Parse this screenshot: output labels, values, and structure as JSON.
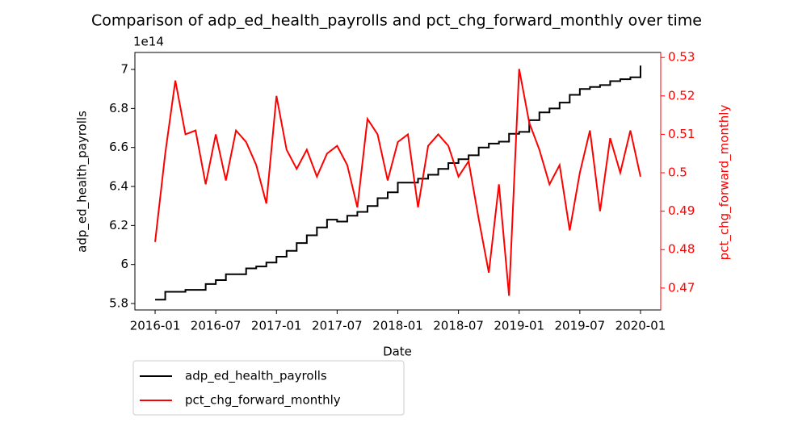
{
  "chart_data": {
    "type": "line",
    "title": "Comparison of adp_ed_health_payrolls and pct_chg_forward_monthly over time",
    "xlabel": "Date",
    "ylabel": "adp_ed_health_payrolls",
    "y2label": "pct_chg_forward_monthly",
    "y_offset_label": "1e14",
    "x": [
      "2016-01",
      "2016-02",
      "2016-03",
      "2016-04",
      "2016-05",
      "2016-06",
      "2016-07",
      "2016-08",
      "2016-09",
      "2016-10",
      "2016-11",
      "2016-12",
      "2017-01",
      "2017-02",
      "2017-03",
      "2017-04",
      "2017-05",
      "2017-06",
      "2017-07",
      "2017-08",
      "2017-09",
      "2017-10",
      "2017-11",
      "2017-12",
      "2018-01",
      "2018-02",
      "2018-03",
      "2018-04",
      "2018-05",
      "2018-06",
      "2018-07",
      "2018-08",
      "2018-09",
      "2018-10",
      "2018-11",
      "2018-12",
      "2019-01",
      "2019-02",
      "2019-03",
      "2019-04",
      "2019-05",
      "2019-06",
      "2019-07",
      "2019-08",
      "2019-09",
      "2019-10",
      "2019-11",
      "2019-12",
      "2020-01"
    ],
    "series": [
      {
        "name": "adp_ed_health_payrolls",
        "color": "#000000",
        "step": true,
        "values": [
          5.82,
          5.86,
          5.86,
          5.87,
          5.87,
          5.9,
          5.92,
          5.95,
          5.95,
          5.98,
          5.99,
          6.01,
          6.04,
          6.07,
          6.11,
          6.15,
          6.19,
          6.23,
          6.22,
          6.25,
          6.27,
          6.3,
          6.34,
          6.37,
          6.42,
          6.42,
          6.44,
          6.46,
          6.49,
          6.52,
          6.54,
          6.56,
          6.6,
          6.62,
          6.63,
          6.67,
          6.68,
          6.74,
          6.78,
          6.8,
          6.83,
          6.87,
          6.9,
          6.91,
          6.92,
          6.94,
          6.95,
          6.96,
          7.02
        ]
      },
      {
        "name": "pct_chg_forward_monthly",
        "color": "#ff0000",
        "axis": "y2",
        "values": [
          0.482,
          0.505,
          0.524,
          0.51,
          0.511,
          0.497,
          0.51,
          0.498,
          0.511,
          0.508,
          0.502,
          0.492,
          0.52,
          0.506,
          0.501,
          0.506,
          0.499,
          0.505,
          0.507,
          0.502,
          0.491,
          0.514,
          0.51,
          0.498,
          0.508,
          0.51,
          0.491,
          0.507,
          0.51,
          0.507,
          0.499,
          0.503,
          0.488,
          0.474,
          0.497,
          0.468,
          0.527,
          0.513,
          0.506,
          0.497,
          0.502,
          0.485,
          0.5,
          0.511,
          0.49,
          0.509,
          0.5,
          0.511,
          0.499
        ]
      }
    ],
    "xlim": [
      "2015-11",
      "2020-03"
    ],
    "xticks": [
      "2016-01",
      "2016-07",
      "2017-01",
      "2017-07",
      "2018-01",
      "2018-07",
      "2019-01",
      "2019-07",
      "2020-01"
    ],
    "ylim": [
      5.767,
      7.087
    ],
    "yticks": [
      5.8,
      6.0,
      6.2,
      6.4,
      6.6,
      6.8,
      7.0
    ],
    "y2lim": [
      0.4643,
      0.5313
    ],
    "y2ticks": [
      0.47,
      0.48,
      0.49,
      0.5,
      0.51,
      0.52,
      0.53
    ],
    "y2color": "#ff0000",
    "legend": "below-left",
    "grid": false
  }
}
